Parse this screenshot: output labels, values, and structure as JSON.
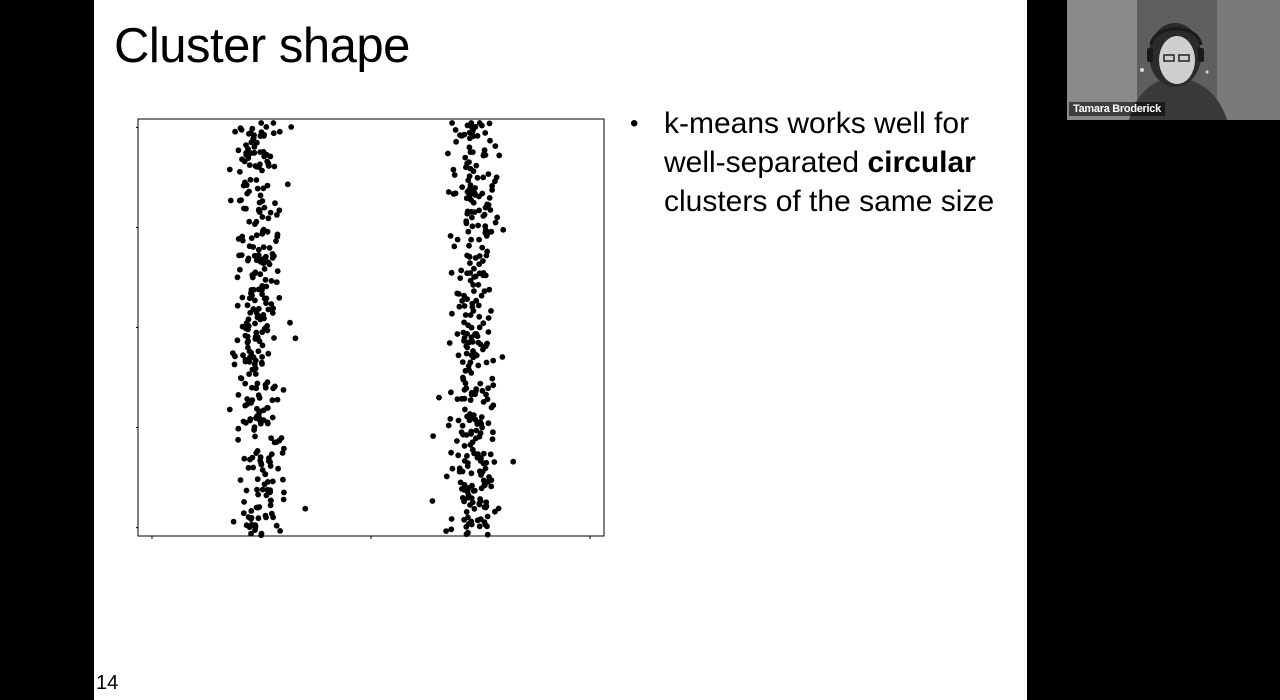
{
  "slide": {
    "title": "Cluster shape",
    "number": "14",
    "bullets": [
      {
        "before": "k-means works well for well-separated ",
        "bold": "circular",
        "after": " clusters of the same size"
      }
    ]
  },
  "video": {
    "participant_name": "Tamara Broderick",
    "icon": "person-icon"
  },
  "chart_data": {
    "type": "scatter",
    "title": "",
    "xlabel": "",
    "ylabel": "",
    "grid": false,
    "legend": "none",
    "point_color": "#000000",
    "point_count_note": "",
    "xlim": [
      0,
      10
    ],
    "ylim": [
      0,
      10
    ],
    "series": [
      {
        "center_x": 2.6,
        "center_y": 5.0,
        "spread_x": 0.26,
        "y_min": 0.0,
        "y_max": 10.0,
        "count": 340
      },
      {
        "center_x": 7.2,
        "center_y": 5.0,
        "spread_x": 0.26,
        "y_min": 0.0,
        "y_max": 10.0,
        "count": 340
      }
    ]
  }
}
